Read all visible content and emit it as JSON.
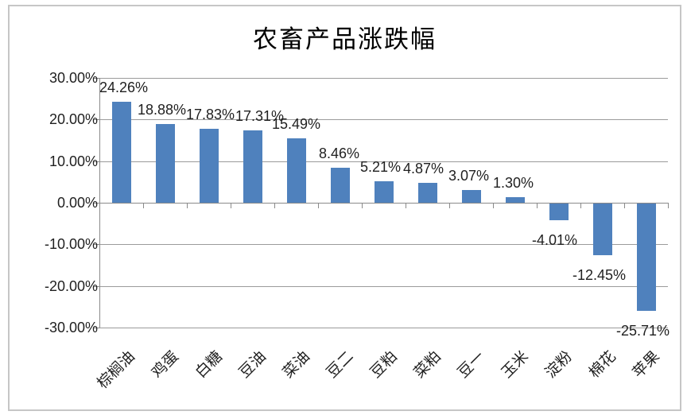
{
  "chart_data": {
    "type": "bar",
    "title": "农畜产品涨跌幅",
    "categories": [
      "棕榈油",
      "鸡蛋",
      "白糖",
      "豆油",
      "菜油",
      "豆二",
      "豆粕",
      "菜粕",
      "豆一",
      "玉米",
      "淀粉",
      "棉花",
      "苹果"
    ],
    "values": [
      24.26,
      18.88,
      17.83,
      17.31,
      15.49,
      8.46,
      5.21,
      4.87,
      3.07,
      1.3,
      -4.01,
      -12.45,
      -25.71
    ],
    "data_labels": [
      "24.26%",
      "18.88%",
      "17.83%",
      "17.31%",
      "15.49%",
      "8.46%",
      "5.21%",
      "4.87%",
      "3.07%",
      "1.30%",
      "-4.01%",
      "-12.45%",
      "-25.71%"
    ],
    "xlabel": "",
    "ylabel": "",
    "yticks": [
      30,
      20,
      10,
      0,
      -10,
      -20,
      -30
    ],
    "ytick_labels": [
      "30.00%",
      "20.00%",
      "10.00%",
      "0.00%",
      "-10.00%",
      "-20.00%",
      "-30.00%"
    ],
    "ylim": [
      -30,
      30
    ],
    "grid": true,
    "legend": false,
    "bar_color": "#4f81bd",
    "gridline_color": "#9b9b9b",
    "axis_color": "#8a8a8a",
    "text_color": "#1f1f1f",
    "frame_border_color": "#c6c6c6",
    "background": "#ffffff"
  }
}
